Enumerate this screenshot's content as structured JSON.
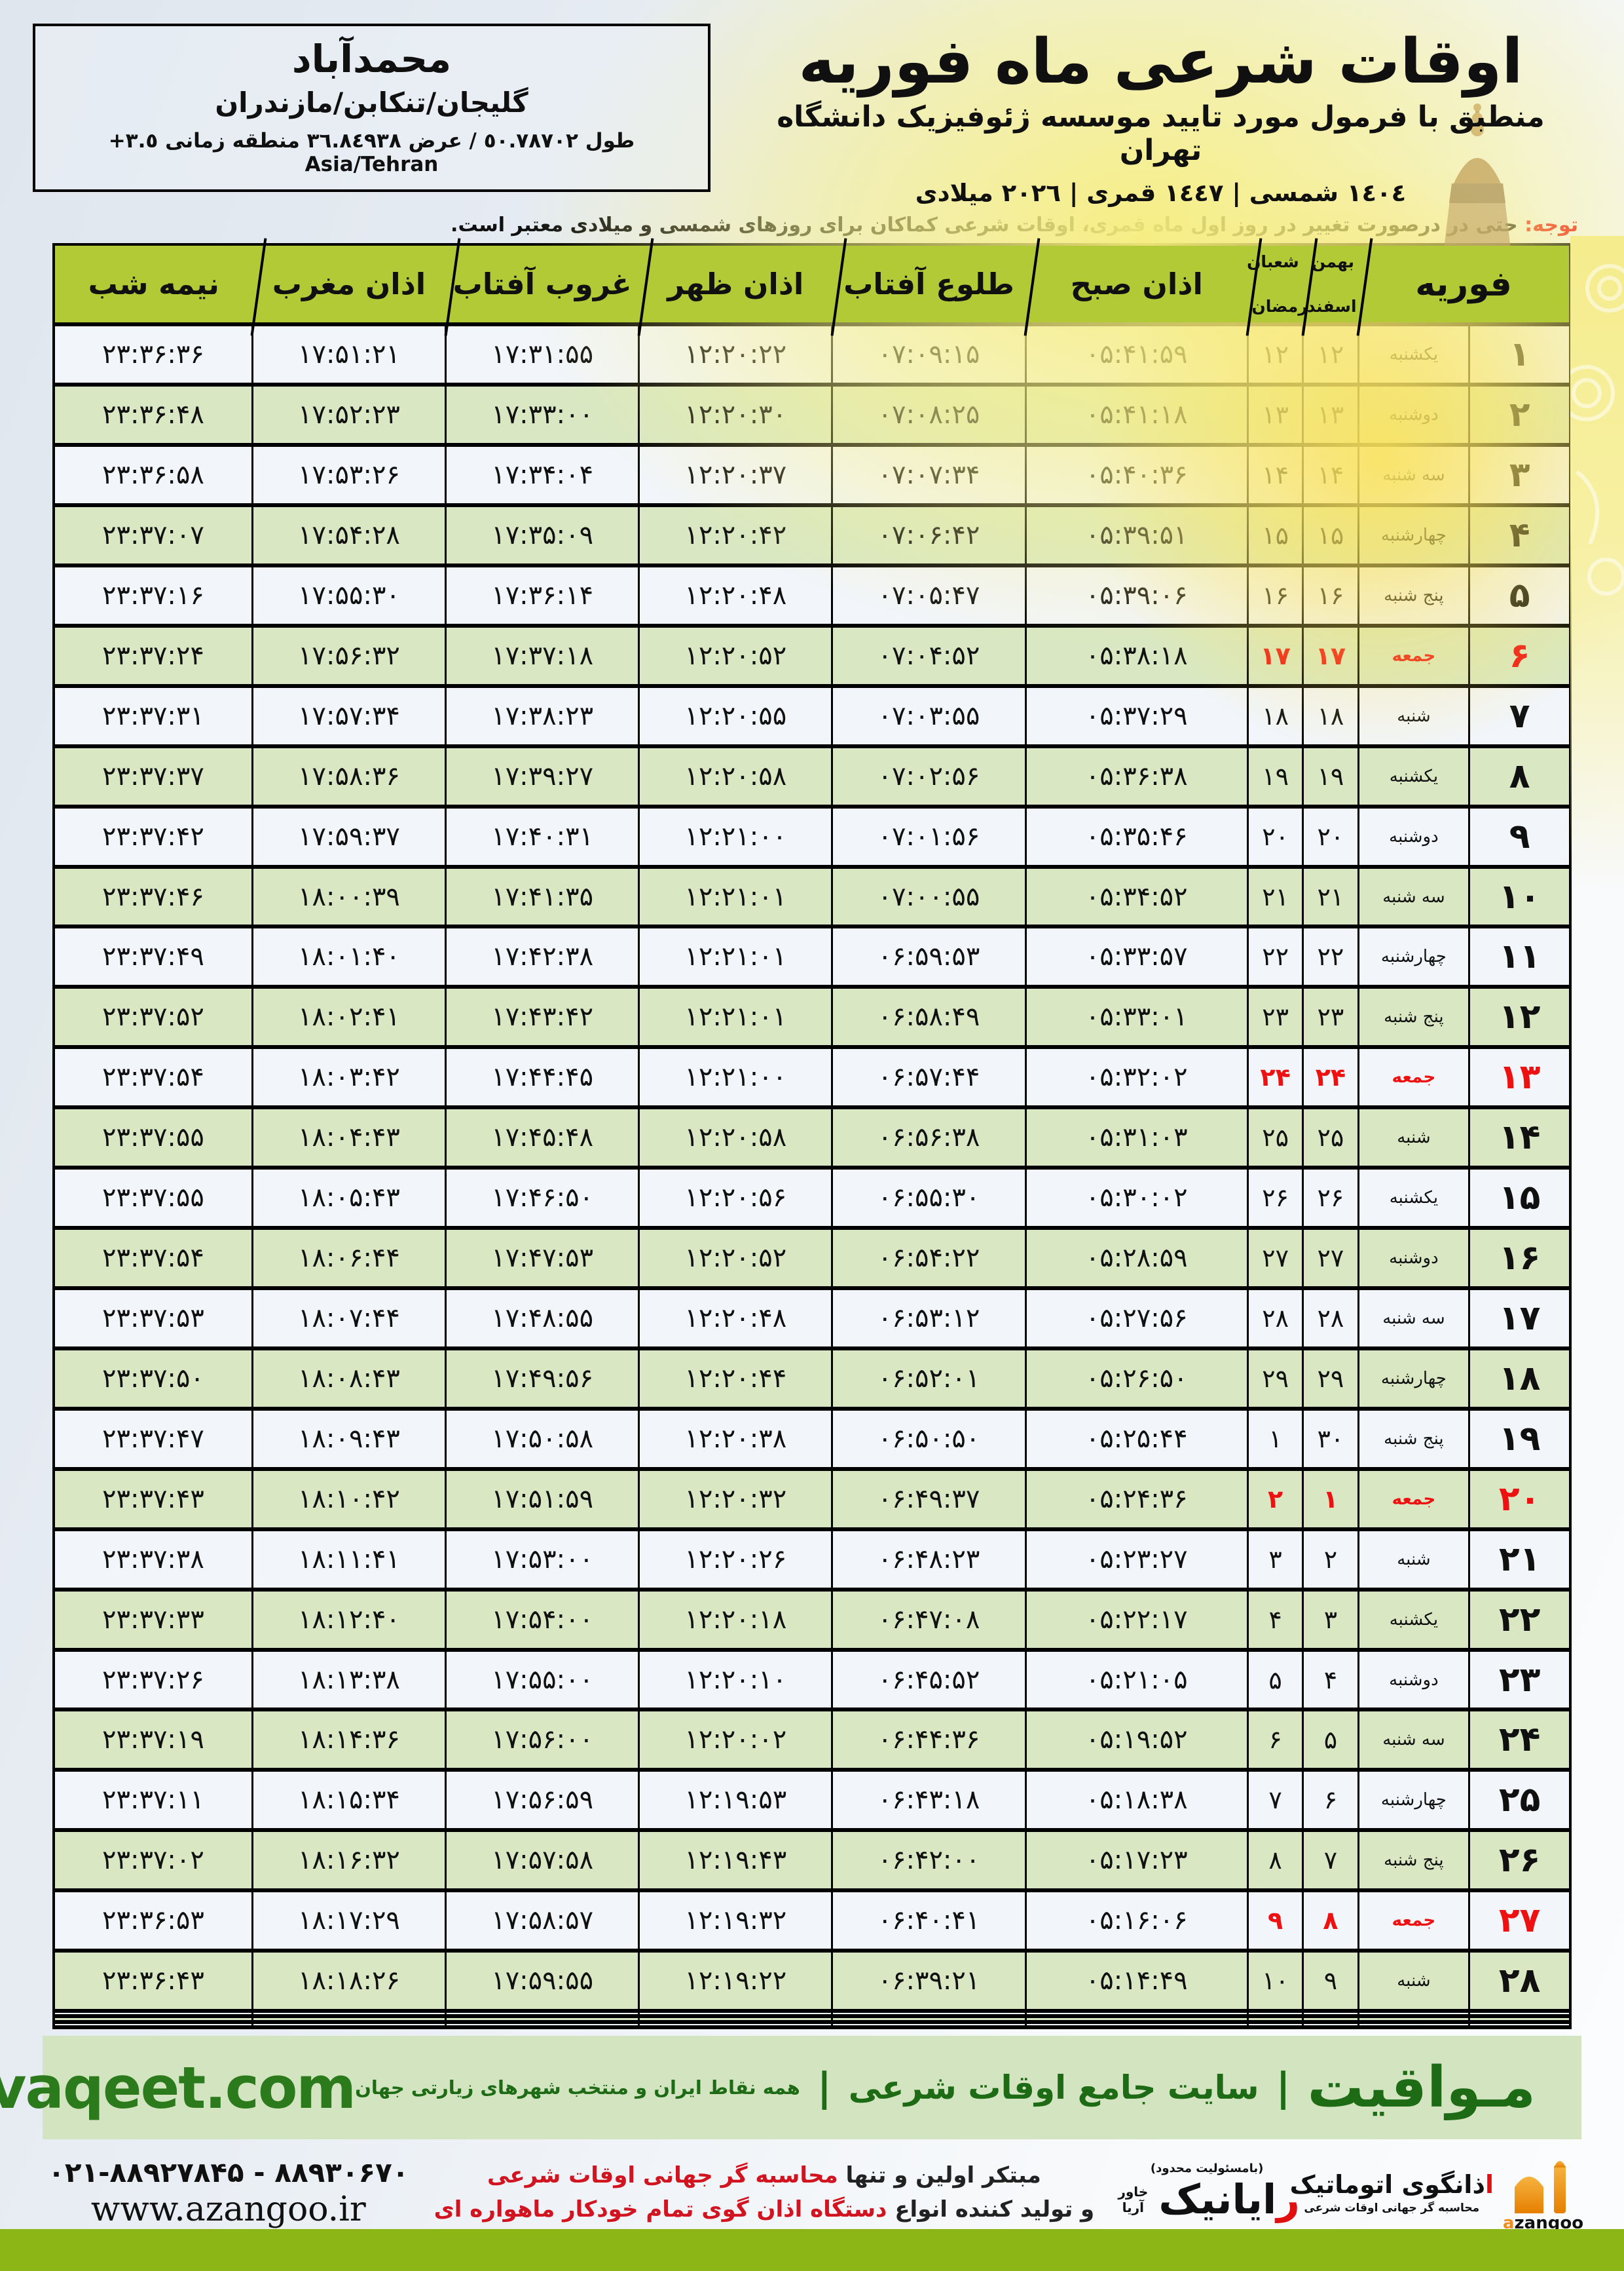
{
  "header": {
    "title": "اوقات شرعی ماه فوریه",
    "subtitle": "منطبق با فرمول مورد تایید موسسه ژئوفیزیک دانشگاه تهران",
    "years_line": "١٤٠٤ شمسی | ١٤٤٧ قمری | ٢٠٢٦ میلادی"
  },
  "location": {
    "city": "محمدآباد",
    "region": "گلیجان/تنکابن/مازندران",
    "coords_line": "طول ٥٠.٧٨٧٠٢ / عرض ٣٦.٨٤٩٣٨ منطقه زمانی ٣.٥+ Asia/Tehran"
  },
  "notice": {
    "label": "توجه:",
    "text": " حتی در درصورت تغییر در روز اول ماه قمری، اوقات شرعی کماکان برای روزهای شمسی و میلادی معتبر است."
  },
  "table": {
    "headers": {
      "month": "فوریه",
      "solar_top": "بهمن",
      "solar_bottom": "اسفند",
      "lunar_top": "شعبان",
      "lunar_bottom": "رمضان",
      "sobh": "اذان صبح",
      "sunrise": "طلوع آفتاب",
      "zohr": "اذان ظهر",
      "sunset": "غروب آفتاب",
      "maghreb": "اذان مغرب",
      "midnight": "نیمه شب"
    },
    "empty_rows": 3,
    "rows": [
      {
        "day": "۱",
        "weekday": "یکشنبه",
        "solar": "۱۲",
        "lunar": "۱۲",
        "sobh": "۰۵:۴۱:۵۹",
        "sunrise": "۰۷:۰۹:۱۵",
        "zohr": "۱۲:۲۰:۲۲",
        "sunset": "۱۷:۳۱:۵۵",
        "maghreb": "۱۷:۵۱:۲۱",
        "midnight": "۲۳:۳۶:۳۶",
        "friday": false
      },
      {
        "day": "۲",
        "weekday": "دوشنبه",
        "solar": "۱۳",
        "lunar": "۱۳",
        "sobh": "۰۵:۴۱:۱۸",
        "sunrise": "۰۷:۰۸:۲۵",
        "zohr": "۱۲:۲۰:۳۰",
        "sunset": "۱۷:۳۳:۰۰",
        "maghreb": "۱۷:۵۲:۲۳",
        "midnight": "۲۳:۳۶:۴۸",
        "friday": false
      },
      {
        "day": "۳",
        "weekday": "سه شنبه",
        "solar": "۱۴",
        "lunar": "۱۴",
        "sobh": "۰۵:۴۰:۳۶",
        "sunrise": "۰۷:۰۷:۳۴",
        "zohr": "۱۲:۲۰:۳۷",
        "sunset": "۱۷:۳۴:۰۴",
        "maghreb": "۱۷:۵۳:۲۶",
        "midnight": "۲۳:۳۶:۵۸",
        "friday": false
      },
      {
        "day": "۴",
        "weekday": "چهارشنبه",
        "solar": "۱۵",
        "lunar": "۱۵",
        "sobh": "۰۵:۳۹:۵۱",
        "sunrise": "۰۷:۰۶:۴۲",
        "zohr": "۱۲:۲۰:۴۲",
        "sunset": "۱۷:۳۵:۰۹",
        "maghreb": "۱۷:۵۴:۲۸",
        "midnight": "۲۳:۳۷:۰۷",
        "friday": false
      },
      {
        "day": "۵",
        "weekday": "پنج شنبه",
        "solar": "۱۶",
        "lunar": "۱۶",
        "sobh": "۰۵:۳۹:۰۶",
        "sunrise": "۰۷:۰۵:۴۷",
        "zohr": "۱۲:۲۰:۴۸",
        "sunset": "۱۷:۳۶:۱۴",
        "maghreb": "۱۷:۵۵:۳۰",
        "midnight": "۲۳:۳۷:۱۶",
        "friday": false
      },
      {
        "day": "۶",
        "weekday": "جمعه",
        "solar": "۱۷",
        "lunar": "۱۷",
        "sobh": "۰۵:۳۸:۱۸",
        "sunrise": "۰۷:۰۴:۵۲",
        "zohr": "۱۲:۲۰:۵۲",
        "sunset": "۱۷:۳۷:۱۸",
        "maghreb": "۱۷:۵۶:۳۲",
        "midnight": "۲۳:۳۷:۲۴",
        "friday": true
      },
      {
        "day": "۷",
        "weekday": "شنبه",
        "solar": "۱۸",
        "lunar": "۱۸",
        "sobh": "۰۵:۳۷:۲۹",
        "sunrise": "۰۷:۰۳:۵۵",
        "zohr": "۱۲:۲۰:۵۵",
        "sunset": "۱۷:۳۸:۲۳",
        "maghreb": "۱۷:۵۷:۳۴",
        "midnight": "۲۳:۳۷:۳۱",
        "friday": false
      },
      {
        "day": "۸",
        "weekday": "یکشنبه",
        "solar": "۱۹",
        "lunar": "۱۹",
        "sobh": "۰۵:۳۶:۳۸",
        "sunrise": "۰۷:۰۲:۵۶",
        "zohr": "۱۲:۲۰:۵۸",
        "sunset": "۱۷:۳۹:۲۷",
        "maghreb": "۱۷:۵۸:۳۶",
        "midnight": "۲۳:۳۷:۳۷",
        "friday": false
      },
      {
        "day": "۹",
        "weekday": "دوشنبه",
        "solar": "۲۰",
        "lunar": "۲۰",
        "sobh": "۰۵:۳۵:۴۶",
        "sunrise": "۰۷:۰۱:۵۶",
        "zohr": "۱۲:۲۱:۰۰",
        "sunset": "۱۷:۴۰:۳۱",
        "maghreb": "۱۷:۵۹:۳۷",
        "midnight": "۲۳:۳۷:۴۲",
        "friday": false
      },
      {
        "day": "۱۰",
        "weekday": "سه شنبه",
        "solar": "۲۱",
        "lunar": "۲۱",
        "sobh": "۰۵:۳۴:۵۲",
        "sunrise": "۰۷:۰۰:۵۵",
        "zohr": "۱۲:۲۱:۰۱",
        "sunset": "۱۷:۴۱:۳۵",
        "maghreb": "۱۸:۰۰:۳۹",
        "midnight": "۲۳:۳۷:۴۶",
        "friday": false
      },
      {
        "day": "۱۱",
        "weekday": "چهارشنبه",
        "solar": "۲۲",
        "lunar": "۲۲",
        "sobh": "۰۵:۳۳:۵۷",
        "sunrise": "۰۶:۵۹:۵۳",
        "zohr": "۱۲:۲۱:۰۱",
        "sunset": "۱۷:۴۲:۳۸",
        "maghreb": "۱۸:۰۱:۴۰",
        "midnight": "۲۳:۳۷:۴۹",
        "friday": false
      },
      {
        "day": "۱۲",
        "weekday": "پنج شنبه",
        "solar": "۲۳",
        "lunar": "۲۳",
        "sobh": "۰۵:۳۳:۰۱",
        "sunrise": "۰۶:۵۸:۴۹",
        "zohr": "۱۲:۲۱:۰۱",
        "sunset": "۱۷:۴۳:۴۲",
        "maghreb": "۱۸:۰۲:۴۱",
        "midnight": "۲۳:۳۷:۵۲",
        "friday": false
      },
      {
        "day": "۱۳",
        "weekday": "جمعه",
        "solar": "۲۴",
        "lunar": "۲۴",
        "sobh": "۰۵:۳۲:۰۲",
        "sunrise": "۰۶:۵۷:۴۴",
        "zohr": "۱۲:۲۱:۰۰",
        "sunset": "۱۷:۴۴:۴۵",
        "maghreb": "۱۸:۰۳:۴۲",
        "midnight": "۲۳:۳۷:۵۴",
        "friday": true
      },
      {
        "day": "۱۴",
        "weekday": "شنبه",
        "solar": "۲۵",
        "lunar": "۲۵",
        "sobh": "۰۵:۳۱:۰۳",
        "sunrise": "۰۶:۵۶:۳۸",
        "zohr": "۱۲:۲۰:۵۸",
        "sunset": "۱۷:۴۵:۴۸",
        "maghreb": "۱۸:۰۴:۴۳",
        "midnight": "۲۳:۳۷:۵۵",
        "friday": false
      },
      {
        "day": "۱۵",
        "weekday": "یکشنبه",
        "solar": "۲۶",
        "lunar": "۲۶",
        "sobh": "۰۵:۳۰:۰۲",
        "sunrise": "۰۶:۵۵:۳۰",
        "zohr": "۱۲:۲۰:۵۶",
        "sunset": "۱۷:۴۶:۵۰",
        "maghreb": "۱۸:۰۵:۴۳",
        "midnight": "۲۳:۳۷:۵۵",
        "friday": false
      },
      {
        "day": "۱۶",
        "weekday": "دوشنبه",
        "solar": "۲۷",
        "lunar": "۲۷",
        "sobh": "۰۵:۲۸:۵۹",
        "sunrise": "۰۶:۵۴:۲۲",
        "zohr": "۱۲:۲۰:۵۲",
        "sunset": "۱۷:۴۷:۵۳",
        "maghreb": "۱۸:۰۶:۴۴",
        "midnight": "۲۳:۳۷:۵۴",
        "friday": false
      },
      {
        "day": "۱۷",
        "weekday": "سه شنبه",
        "solar": "۲۸",
        "lunar": "۲۸",
        "sobh": "۰۵:۲۷:۵۶",
        "sunrise": "۰۶:۵۳:۱۲",
        "zohr": "۱۲:۲۰:۴۸",
        "sunset": "۱۷:۴۸:۵۵",
        "maghreb": "۱۸:۰۷:۴۴",
        "midnight": "۲۳:۳۷:۵۳",
        "friday": false
      },
      {
        "day": "۱۸",
        "weekday": "چهارشنبه",
        "solar": "۲۹",
        "lunar": "۲۹",
        "sobh": "۰۵:۲۶:۵۰",
        "sunrise": "۰۶:۵۲:۰۱",
        "zohr": "۱۲:۲۰:۴۴",
        "sunset": "۱۷:۴۹:۵۶",
        "maghreb": "۱۸:۰۸:۴۳",
        "midnight": "۲۳:۳۷:۵۰",
        "friday": false
      },
      {
        "day": "۱۹",
        "weekday": "پنج شنبه",
        "solar": "۳۰",
        "lunar": "۱",
        "sobh": "۰۵:۲۵:۴۴",
        "sunrise": "۰۶:۵۰:۵۰",
        "zohr": "۱۲:۲۰:۳۸",
        "sunset": "۱۷:۵۰:۵۸",
        "maghreb": "۱۸:۰۹:۴۳",
        "midnight": "۲۳:۳۷:۴۷",
        "friday": false
      },
      {
        "day": "۲۰",
        "weekday": "جمعه",
        "solar": "۱",
        "lunar": "۲",
        "sobh": "۰۵:۲۴:۳۶",
        "sunrise": "۰۶:۴۹:۳۷",
        "zohr": "۱۲:۲۰:۳۲",
        "sunset": "۱۷:۵۱:۵۹",
        "maghreb": "۱۸:۱۰:۴۲",
        "midnight": "۲۳:۳۷:۴۳",
        "friday": true
      },
      {
        "day": "۲۱",
        "weekday": "شنبه",
        "solar": "۲",
        "lunar": "۳",
        "sobh": "۰۵:۲۳:۲۷",
        "sunrise": "۰۶:۴۸:۲۳",
        "zohr": "۱۲:۲۰:۲۶",
        "sunset": "۱۷:۵۳:۰۰",
        "maghreb": "۱۸:۱۱:۴۱",
        "midnight": "۲۳:۳۷:۳۸",
        "friday": false
      },
      {
        "day": "۲۲",
        "weekday": "یکشنبه",
        "solar": "۳",
        "lunar": "۴",
        "sobh": "۰۵:۲۲:۱۷",
        "sunrise": "۰۶:۴۷:۰۸",
        "zohr": "۱۲:۲۰:۱۸",
        "sunset": "۱۷:۵۴:۰۰",
        "maghreb": "۱۸:۱۲:۴۰",
        "midnight": "۲۳:۳۷:۳۳",
        "friday": false
      },
      {
        "day": "۲۳",
        "weekday": "دوشنبه",
        "solar": "۴",
        "lunar": "۵",
        "sobh": "۰۵:۲۱:۰۵",
        "sunrise": "۰۶:۴۵:۵۲",
        "zohr": "۱۲:۲۰:۱۰",
        "sunset": "۱۷:۵۵:۰۰",
        "maghreb": "۱۸:۱۳:۳۸",
        "midnight": "۲۳:۳۷:۲۶",
        "friday": false
      },
      {
        "day": "۲۴",
        "weekday": "سه شنبه",
        "solar": "۵",
        "lunar": "۶",
        "sobh": "۰۵:۱۹:۵۲",
        "sunrise": "۰۶:۴۴:۳۶",
        "zohr": "۱۲:۲۰:۰۲",
        "sunset": "۱۷:۵۶:۰۰",
        "maghreb": "۱۸:۱۴:۳۶",
        "midnight": "۲۳:۳۷:۱۹",
        "friday": false
      },
      {
        "day": "۲۵",
        "weekday": "چهارشنبه",
        "solar": "۶",
        "lunar": "۷",
        "sobh": "۰۵:۱۸:۳۸",
        "sunrise": "۰۶:۴۳:۱۸",
        "zohr": "۱۲:۱۹:۵۳",
        "sunset": "۱۷:۵۶:۵۹",
        "maghreb": "۱۸:۱۵:۳۴",
        "midnight": "۲۳:۳۷:۱۱",
        "friday": false
      },
      {
        "day": "۲۶",
        "weekday": "پنج شنبه",
        "solar": "۷",
        "lunar": "۸",
        "sobh": "۰۵:۱۷:۲۳",
        "sunrise": "۰۶:۴۲:۰۰",
        "zohr": "۱۲:۱۹:۴۳",
        "sunset": "۱۷:۵۷:۵۸",
        "maghreb": "۱۸:۱۶:۳۲",
        "midnight": "۲۳:۳۷:۰۲",
        "friday": false
      },
      {
        "day": "۲۷",
        "weekday": "جمعه",
        "solar": "۸",
        "lunar": "۹",
        "sobh": "۰۵:۱۶:۰۶",
        "sunrise": "۰۶:۴۰:۴۱",
        "zohr": "۱۲:۱۹:۳۲",
        "sunset": "۱۷:۵۸:۵۷",
        "maghreb": "۱۸:۱۷:۲۹",
        "midnight": "۲۳:۳۶:۵۳",
        "friday": true
      },
      {
        "day": "۲۸",
        "weekday": "شنبه",
        "solar": "۹",
        "lunar": "۱۰",
        "sobh": "۰۵:۱۴:۴۹",
        "sunrise": "۰۶:۳۹:۲۱",
        "zohr": "۱۲:۱۹:۲۲",
        "sunset": "۱۷:۵۹:۵۵",
        "maghreb": "۱۸:۱۸:۲۶",
        "midnight": "۲۳:۳۶:۴۳",
        "friday": false
      }
    ]
  },
  "banner": {
    "site": "mavaqeet.com",
    "brand": "مـواقیت",
    "sep": "|",
    "tagline1": "سایت جامع اوقات شرعی",
    "tagline2": "همه نقاط ایران و منتخب شهرهای زیارتی جهان"
  },
  "footer": {
    "phone": "۰۲۱-۸۸۹۲۷۸۴۵ - ۸۸۹۳۰۶۷۰",
    "website": "www.azangoo.ir",
    "line1_dark": "مبتکر اولین و تنها ",
    "line1_red": "محاسبه گر جهانی اوقات شرعی",
    "line2_dark": "و تولید کننده انواع ",
    "line2_red": "دستگاه اذان گوی تمام خودکار ماهواره ای",
    "rayanik": {
      "note": "(بامسئولیت محدود)",
      "first": "ر",
      "rest": "ایانیک",
      "side": "خاور آریا"
    },
    "azangoo": {
      "alef": "ا",
      "title": "ذانگوی اتوماتیک",
      "sub": "محاسبه گر جهانی اوقات شرعی",
      "latin_a": "a",
      "latin_rest": "zangoo"
    }
  },
  "colors": {
    "header_green": "#b2ca35",
    "row_green": "#d9e8c3",
    "row_light": "#f2f5f9",
    "friday_red": "#ee1111",
    "banner_bg": "#d3e5c0",
    "banner_text": "#1e6b16",
    "bottom_bar": "#8cb616",
    "logo_orange": "#f08c1e"
  }
}
